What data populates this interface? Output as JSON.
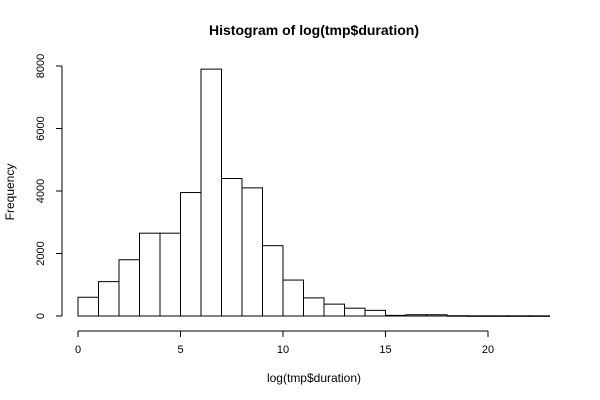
{
  "chart_data": {
    "type": "bar",
    "title": "Histogram of log(tmp$duration)",
    "xlabel": "log(tmp$duration)",
    "ylabel": "Frequency",
    "bin_width": 1,
    "bins": [
      {
        "start": 0,
        "end": 1,
        "count": 600
      },
      {
        "start": 1,
        "end": 2,
        "count": 1100
      },
      {
        "start": 2,
        "end": 3,
        "count": 1800
      },
      {
        "start": 3,
        "end": 4,
        "count": 2650
      },
      {
        "start": 4,
        "end": 5,
        "count": 2650
      },
      {
        "start": 5,
        "end": 6,
        "count": 3950
      },
      {
        "start": 6,
        "end": 7,
        "count": 7900
      },
      {
        "start": 7,
        "end": 8,
        "count": 4400
      },
      {
        "start": 8,
        "end": 9,
        "count": 4100
      },
      {
        "start": 9,
        "end": 10,
        "count": 2250
      },
      {
        "start": 10,
        "end": 11,
        "count": 1150
      },
      {
        "start": 11,
        "end": 12,
        "count": 580
      },
      {
        "start": 12,
        "end": 13,
        "count": 380
      },
      {
        "start": 13,
        "end": 14,
        "count": 250
      },
      {
        "start": 14,
        "end": 15,
        "count": 180
      },
      {
        "start": 15,
        "end": 16,
        "count": 20
      },
      {
        "start": 16,
        "end": 17,
        "count": 40
      },
      {
        "start": 17,
        "end": 18,
        "count": 40
      },
      {
        "start": 18,
        "end": 19,
        "count": 10
      },
      {
        "start": 19,
        "end": 20,
        "count": 5
      },
      {
        "start": 20,
        "end": 21,
        "count": 5
      },
      {
        "start": 21,
        "end": 22,
        "count": 5
      },
      {
        "start": 22,
        "end": 23,
        "count": 5
      }
    ],
    "xlim": [
      0,
      23
    ],
    "ylim": [
      0,
      8000
    ],
    "x_ticks": [
      "0",
      "5",
      "10",
      "15",
      "20"
    ],
    "y_ticks": [
      "0",
      "2000",
      "4000",
      "6000",
      "8000"
    ],
    "grid": false,
    "legend": "none"
  }
}
